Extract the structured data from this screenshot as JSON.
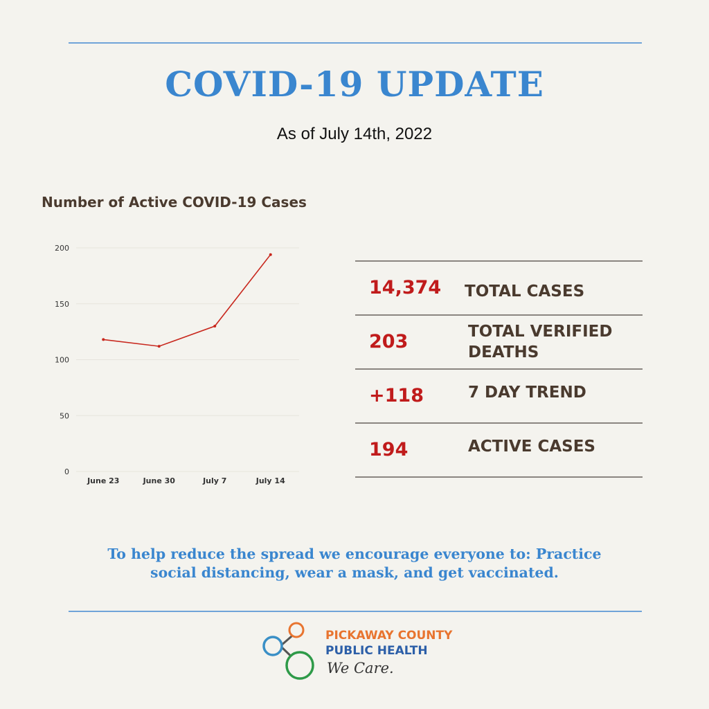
{
  "header": {
    "title": "COVID-19 UPDATE",
    "subtitle": "As of July 14th, 2022"
  },
  "chart_data": {
    "type": "line",
    "title": "Number of Active COVID-19 Cases",
    "categories": [
      "June 23",
      "June 30",
      "July 7",
      "July 14"
    ],
    "series": [
      {
        "values": [
          118,
          112,
          130,
          194
        ]
      }
    ],
    "ylim": [
      0,
      200
    ],
    "yticks": [
      0,
      50,
      100,
      150,
      200
    ],
    "grid": true,
    "line_color": "#c8281e"
  },
  "stats": [
    {
      "value": "14,374",
      "label": "TOTAL CASES"
    },
    {
      "value": "203",
      "label": "TOTAL VERIFIED DEATHS"
    },
    {
      "value": "+118",
      "label": "7 DAY TREND"
    },
    {
      "value": "194",
      "label": "ACTIVE CASES"
    }
  ],
  "footer": {
    "message": "To help reduce the spread we encourage everyone to: Practice social distancing, wear a mask, and get vaccinated."
  },
  "logo": {
    "line1": "PICKAWAY COUNTY",
    "line2": "PUBLIC HEALTH",
    "line3": "We Care."
  },
  "colors": {
    "accent_blue": "#3a86cf",
    "stat_red": "#c01b1b",
    "label_brown": "#4a3a2e"
  }
}
